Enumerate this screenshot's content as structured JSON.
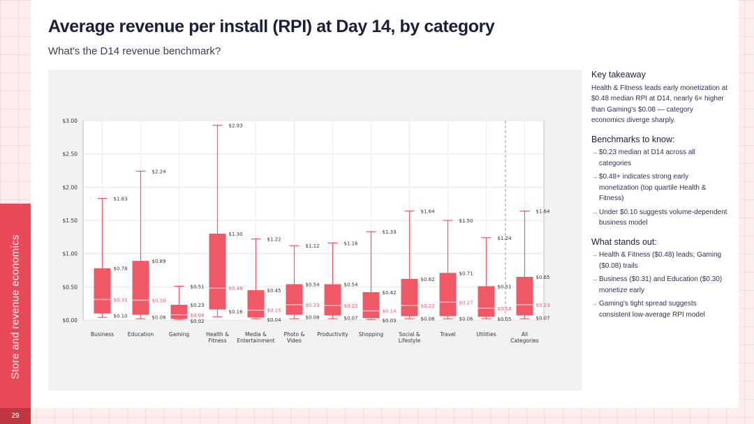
{
  "slide": {
    "title": "Average revenue per install (RPI) at Day 14, by category",
    "subtitle": "What's the D14 revenue benchmark?",
    "side_label": "Store and revenue economics",
    "page_number": "29",
    "accent_color": "#e84b57"
  },
  "takeaway": {
    "heading": "Key takeaway",
    "body": "Health & Fitness leads early monetization at $0.48 median RPI at D14, nearly 6× higher than Gaming's $0.08 — category economics diverge sharply."
  },
  "benchmarks": {
    "heading": "Benchmarks to know:",
    "items": [
      "$0.23 median at D14 across all categories",
      "$0.48+ indicates strong early monetization (top quartile Health & Fitness)",
      "Under $0.10 suggests volume-dependent business model"
    ]
  },
  "standouts": {
    "heading": "What stands out:",
    "items": [
      "Health & Fitness ($0.48) leads; Gaming ($0.08) trails",
      "Business ($0.31) and Education ($0.30) monetize early",
      "Gaming's tight spread suggests consistent low-average RPI model"
    ]
  },
  "chart_data": {
    "type": "boxplot",
    "title": "",
    "xlabel": "",
    "ylabel": "",
    "ylim": [
      0,
      3.0
    ],
    "y_ticks": [
      {
        "value": 0,
        "label": "$0.00"
      },
      {
        "value": 0.5,
        "label": "$0.50"
      },
      {
        "value": 1.0,
        "label": "$1.00"
      },
      {
        "value": 1.5,
        "label": "$1.50"
      },
      {
        "value": 2.0,
        "label": "$2.00"
      },
      {
        "value": 2.5,
        "label": "$2.50"
      },
      {
        "value": 3.0,
        "label": "$3.00"
      }
    ],
    "box_color": "#f05866",
    "median_color": "#f7b3b9",
    "grid": true,
    "separator_before_last": true,
    "categories": [
      {
        "name": [
          "Business"
        ],
        "whisker_low": 0.04,
        "q1": 0.1,
        "median": 0.31,
        "q3": 0.78,
        "whisker_high": 1.83,
        "labels": {
          "q1": "$0.10",
          "median": "$0.31",
          "q3": "$0.78",
          "high": "$1.83"
        }
      },
      {
        "name": [
          "Education"
        ],
        "whisker_low": 0.02,
        "q1": 0.08,
        "median": 0.3,
        "q3": 0.89,
        "whisker_high": 2.24,
        "labels": {
          "q1": "$0.08",
          "median": "$0.30",
          "q3": "$0.89",
          "high": "$2.24"
        }
      },
      {
        "name": [
          "Gaming"
        ],
        "whisker_low": 0.01,
        "q1": 0.02,
        "median": 0.08,
        "q3": 0.23,
        "whisker_high": 0.51,
        "labels": {
          "q1": "$0.02",
          "median": "$0.08",
          "q3": "$0.23",
          "high": "$0.51"
        }
      },
      {
        "name": [
          "Health &",
          "Fitness"
        ],
        "whisker_low": 0.05,
        "q1": 0.16,
        "median": 0.48,
        "q3": 1.3,
        "whisker_high": 2.93,
        "labels": {
          "q1": "$0.16",
          "median": "$0.48",
          "q3": "$1.30",
          "high": "$2.93"
        }
      },
      {
        "name": [
          "Media &",
          "Entertainment"
        ],
        "whisker_low": 0.02,
        "q1": 0.04,
        "median": 0.15,
        "q3": 0.45,
        "whisker_high": 1.22,
        "labels": {
          "q1": "$0.04",
          "median": "$0.15",
          "q3": "$0.45",
          "high": "$1.22"
        }
      },
      {
        "name": [
          "Photo &",
          "Video"
        ],
        "whisker_low": 0.02,
        "q1": 0.08,
        "median": 0.23,
        "q3": 0.54,
        "whisker_high": 1.12,
        "labels": {
          "q1": "$0.08",
          "median": "$0.23",
          "q3": "$0.54",
          "high": "$1.12"
        }
      },
      {
        "name": [
          "Productivity"
        ],
        "whisker_low": 0.02,
        "q1": 0.07,
        "median": 0.22,
        "q3": 0.54,
        "whisker_high": 1.16,
        "labels": {
          "q1": "$0.07",
          "median": "$0.22",
          "q3": "$0.54",
          "high": "$1.16"
        }
      },
      {
        "name": [
          "Shopping"
        ],
        "whisker_low": 0.01,
        "q1": 0.03,
        "median": 0.14,
        "q3": 0.42,
        "whisker_high": 1.33,
        "labels": {
          "q1": "$0.03",
          "median": "$0.14",
          "q3": "$0.42",
          "high": "$1.33"
        }
      },
      {
        "name": [
          "Social &",
          "Lifestyle"
        ],
        "whisker_low": 0.02,
        "q1": 0.06,
        "median": 0.22,
        "q3": 0.62,
        "whisker_high": 1.64,
        "labels": {
          "q1": "$0.06",
          "median": "$0.22",
          "q3": "$0.62",
          "high": "$1.64"
        }
      },
      {
        "name": [
          "Travel"
        ],
        "whisker_low": 0.02,
        "q1": 0.06,
        "median": 0.27,
        "q3": 0.71,
        "whisker_high": 1.5,
        "labels": {
          "q1": "$0.06",
          "median": "$0.27",
          "q3": "$0.71",
          "high": "$1.50"
        }
      },
      {
        "name": [
          "Utilities"
        ],
        "whisker_low": 0.02,
        "q1": 0.05,
        "median": 0.18,
        "q3": 0.51,
        "whisker_high": 1.24,
        "labels": {
          "q1": "$0.05",
          "median": "$0.18",
          "q3": "$0.51",
          "high": "$1.24"
        }
      },
      {
        "name": [
          "All",
          "Categories"
        ],
        "whisker_low": 0.02,
        "q1": 0.07,
        "median": 0.23,
        "q3": 0.65,
        "whisker_high": 1.64,
        "labels": {
          "q1": "$0.07",
          "median": "$0.23",
          "q3": "$0.65",
          "high": "$1.64"
        }
      }
    ]
  }
}
